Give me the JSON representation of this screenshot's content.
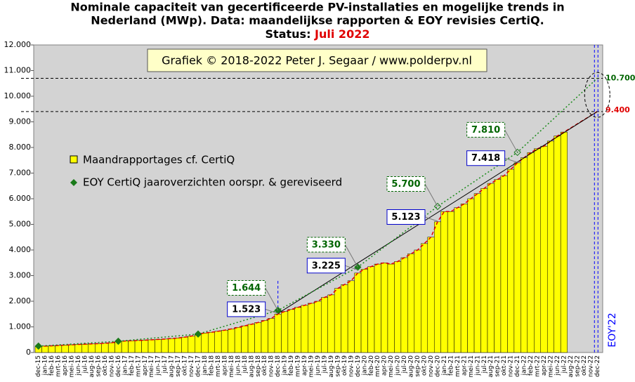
{
  "chart_data": {
    "type": "bar",
    "title": [
      "Nominale capaciteit van gecertificeerde PV-installaties en mogelijke trends in",
      "Nederland (MWp). Data: maandelijkse rapporten & EOY revisies CertiQ."
    ],
    "status_label": "Status:",
    "status": "Juli 2022",
    "credit": "Grafiek © 2018-2022 Peter J. Segaar / www.polderpv.nl",
    "right_label": "EOY'22",
    "categories": [
      "dec-15",
      "jan-16",
      "feb-16",
      "mrt-16",
      "apr-16",
      "mei-16",
      "jun-16",
      "jul-16",
      "aug-16",
      "sep-16",
      "okt-16",
      "nov-16",
      "dec-16",
      "jan-17",
      "feb-17",
      "mrt-17",
      "apr-17",
      "mei-17",
      "jun-17",
      "jul-17",
      "aug-17",
      "sep-17",
      "okt-17",
      "nov-17",
      "dec-17",
      "jan-18",
      "feb-18",
      "mrt-18",
      "apr-18",
      "mei-18",
      "jun-18",
      "jul-18",
      "aug-18",
      "sep-18",
      "okt-18",
      "nov-18",
      "dec-18",
      "jan-19",
      "feb-19",
      "mrt-19",
      "apr-19",
      "mei-19",
      "jun-19",
      "jul-19",
      "aug-19",
      "sep-19",
      "okt-19",
      "nov-19",
      "dec-19",
      "jan-20",
      "feb-20",
      "mrt-20",
      "apr-20",
      "mei-20",
      "jun-20",
      "jul-20",
      "aug-20",
      "sep-20",
      "okt-20",
      "nov-20",
      "dec-20",
      "jan-21",
      "feb-21",
      "mrt-21",
      "apr-21",
      "mei-21",
      "jun-21",
      "jul-21",
      "aug-21",
      "sep-21",
      "okt-21",
      "nov-21",
      "dec-21",
      "jan-22",
      "feb-22",
      "mrt-22",
      "apr-22",
      "mei-22",
      "jun-22",
      "jul-22",
      "aug-22",
      "sep-22",
      "okt-22",
      "nov-22",
      "dec-22"
    ],
    "series": [
      {
        "name": "Maandrapportages cf. CertiQ",
        "color": "#ffff00",
        "values": [
          230,
          250,
          260,
          275,
          290,
          300,
          315,
          325,
          335,
          345,
          360,
          380,
          430,
          450,
          460,
          470,
          480,
          495,
          510,
          525,
          545,
          565,
          600,
          640,
          720,
          760,
          790,
          830,
          870,
          920,
          980,
          1040,
          1100,
          1170,
          1250,
          1330,
          1500,
          1600,
          1680,
          1760,
          1840,
          1920,
          2000,
          2150,
          2250,
          2500,
          2650,
          2800,
          3100,
          3250,
          3350,
          3450,
          3500,
          3450,
          3550,
          3700,
          3850,
          4000,
          4250,
          4500,
          5100,
          5500,
          5500,
          5650,
          5800,
          6000,
          6200,
          6400,
          6600,
          6750,
          6900,
          7150,
          7400,
          7600,
          7800,
          7950,
          8050,
          8250,
          8450,
          8600,
          null,
          null,
          null,
          null,
          null
        ]
      },
      {
        "name": "EOY CertiQ jaaroverzichten oorspr. & gereviseerd",
        "color": "#1a7a1a",
        "values": [
          250,
          null,
          null,
          null,
          null,
          null,
          null,
          null,
          null,
          null,
          null,
          null,
          440,
          null,
          null,
          null,
          null,
          null,
          null,
          null,
          null,
          null,
          null,
          null,
          720,
          null,
          null,
          null,
          null,
          null,
          null,
          null,
          null,
          null,
          null,
          null,
          1644,
          null,
          null,
          null,
          null,
          null,
          null,
          null,
          null,
          null,
          null,
          null,
          3330,
          null,
          null,
          null,
          null,
          null,
          null,
          null,
          null,
          null,
          null,
          null,
          5700,
          null,
          null,
          null,
          null,
          null,
          null,
          null,
          null,
          null,
          null,
          null,
          7810,
          null,
          null,
          null,
          null,
          null,
          null,
          null,
          null,
          null,
          null,
          null,
          null
        ]
      }
    ],
    "original_labels": [
      {
        "category": "dec-18",
        "value": 1644,
        "label": "1.644"
      },
      {
        "category": "dec-19",
        "value": 3330,
        "label": "3.330"
      },
      {
        "category": "dec-20",
        "value": 5700,
        "label": "5.700"
      },
      {
        "category": "dec-21",
        "value": 7810,
        "label": "7.810"
      }
    ],
    "revised_labels": [
      {
        "category": "dec-18",
        "value": 1523,
        "label": "1.523"
      },
      {
        "category": "dec-19",
        "value": 3225,
        "label": "3.225"
      },
      {
        "category": "dec-20",
        "value": 5123,
        "label": "5.123"
      },
      {
        "category": "dec-21",
        "value": 7418,
        "label": "7.418"
      }
    ],
    "projections": [
      {
        "category": "dec-22",
        "value": 10700,
        "label": "10.700",
        "color": "#006400"
      },
      {
        "category": "dec-22",
        "value": 9400,
        "label": "9.400",
        "color": "#e00000"
      }
    ],
    "ylim": [
      0,
      12000
    ],
    "yticks": [
      0,
      {
        "value": 1000,
        "label": "1.000"
      },
      {
        "value": 2000,
        "label": "2.000"
      },
      {
        "value": 3000,
        "label": "3.000"
      },
      {
        "value": 4000,
        "label": "4.000"
      },
      {
        "value": 5000,
        "label": "5.000"
      },
      {
        "value": 6000,
        "label": "6.000"
      },
      {
        "value": 7000,
        "label": "7.000"
      },
      {
        "value": 8000,
        "label": "8.000"
      },
      {
        "value": 9000,
        "label": "9.000"
      },
      {
        "value": 10000,
        "label": "10.000"
      },
      {
        "value": 11000,
        "label": "11.000"
      },
      {
        "value": 12000,
        "label": "12.000"
      }
    ],
    "grid": false
  }
}
